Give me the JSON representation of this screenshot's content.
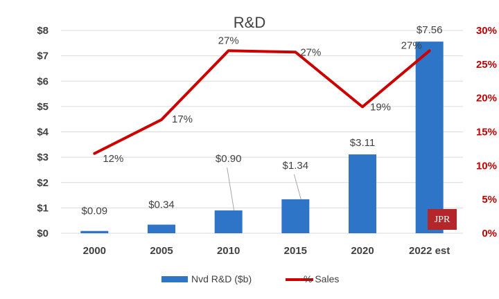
{
  "chart_data": {
    "type": "bar",
    "title": "R&D",
    "categories": [
      "2000",
      "2005",
      "2010",
      "2015",
      "2020",
      "2022 est"
    ],
    "series": [
      {
        "name": "Nvd R&D ($b)",
        "kind": "bar",
        "axis": "left",
        "color": "#2e75c8",
        "values": [
          0.09,
          0.34,
          0.9,
          1.34,
          3.11,
          7.56
        ],
        "labels": [
          "$0.09",
          "$0.34",
          "$0.90",
          "$1.34",
          "$3.11",
          "$7.56"
        ]
      },
      {
        "name": "% Sales",
        "kind": "line",
        "axis": "right",
        "color": "#cc0000",
        "values": [
          11.8,
          16.8,
          27.0,
          26.8,
          18.7,
          27.0
        ],
        "labels": [
          "12%",
          "17%",
          "27%",
          "27%",
          "19%",
          "27%"
        ]
      }
    ],
    "y_left": {
      "min": 0,
      "max": 8,
      "ticks": [
        0,
        1,
        2,
        3,
        4,
        5,
        6,
        7,
        8
      ],
      "tick_labels": [
        "$0",
        "$1",
        "$2",
        "$3",
        "$4",
        "$5",
        "$6",
        "$7",
        "$8"
      ]
    },
    "y_right": {
      "min": 0,
      "max": 30,
      "ticks": [
        0,
        5,
        10,
        15,
        20,
        25,
        30
      ],
      "tick_labels": [
        "0%",
        "5%",
        "10%",
        "15%",
        "20%",
        "25%",
        "30%"
      ]
    },
    "grid": true,
    "legend": "bottom",
    "logo_text": "JPR"
  }
}
